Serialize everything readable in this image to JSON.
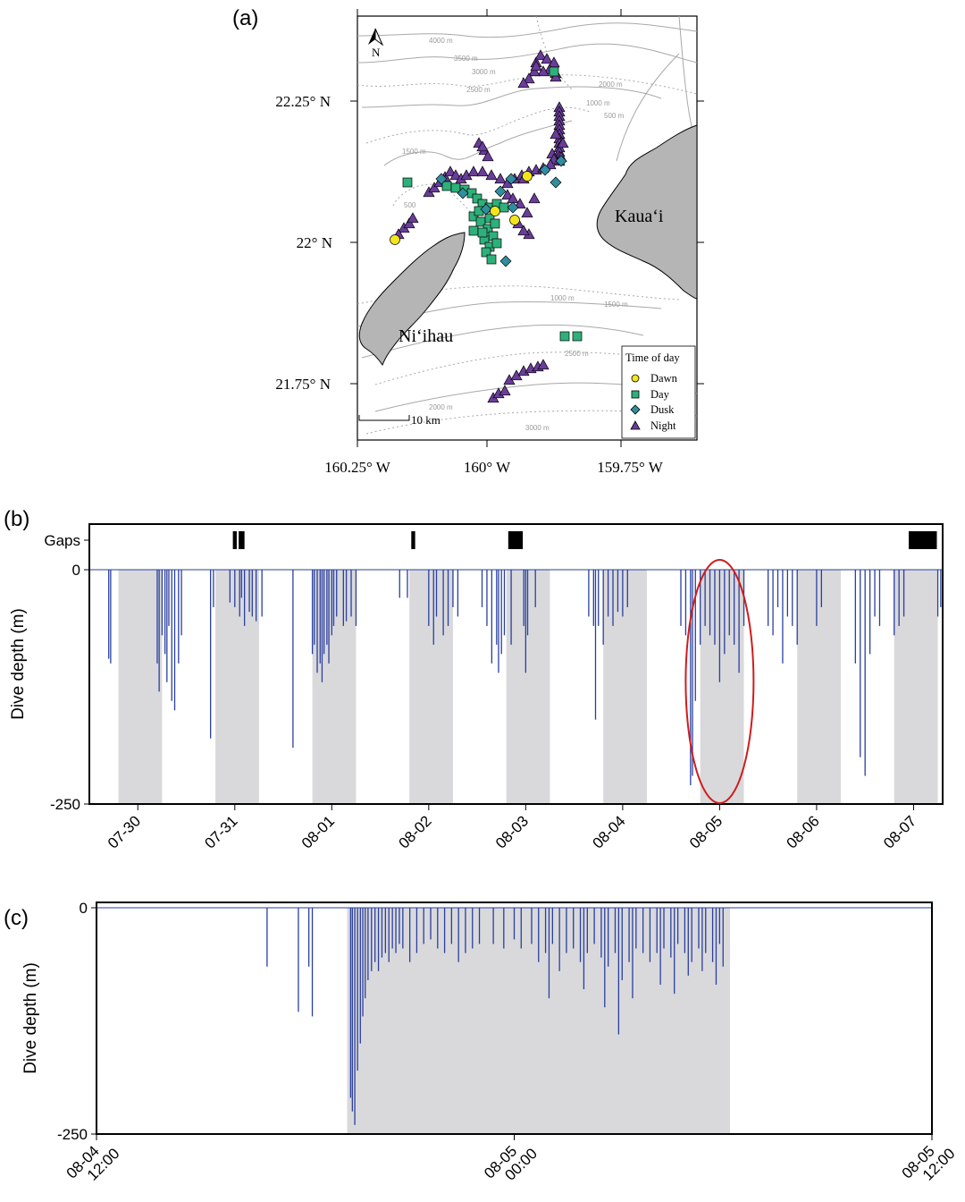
{
  "panels": {
    "a": "(a)",
    "b": "(b)",
    "c": "(c)"
  },
  "map": {
    "lat_ticks": [
      "22.25° N",
      "22° N",
      "21.75° N"
    ],
    "lon_ticks": [
      "160.25° W",
      "160° W",
      "159.75° W"
    ],
    "north": "N",
    "scale_bar": "10 km",
    "islands": [
      "Kauaʻi",
      "Niʻihau"
    ],
    "contours": [
      "4000 m",
      "3500 m",
      "3000 m",
      "2500 m",
      "2000 m",
      "1000 m",
      "500 m",
      "1500 m",
      "500",
      "1000 m",
      "1500 m",
      "2500 m",
      "2000 m",
      "3000 m"
    ],
    "legend": {
      "title": "Time of day",
      "items": [
        {
          "label": "Dawn",
          "color": "#f2e61a",
          "shape": "circle"
        },
        {
          "label": "Day",
          "color": "#2eb07a",
          "shape": "square"
        },
        {
          "label": "Dusk",
          "color": "#2f8fa0",
          "shape": "diamond"
        },
        {
          "label": "Night",
          "color": "#6a3d9a",
          "shape": "triangle"
        }
      ]
    },
    "colors": {
      "land": "#b5b5b5",
      "contour": "#a8a8a8"
    }
  },
  "chart_data": [
    {
      "type": "line",
      "panel": "b",
      "ylabel": "Dive depth (m)",
      "gaps_label": "Gaps",
      "ylim": [
        -250,
        0
      ],
      "yticks": [
        "0",
        "-250"
      ],
      "xticks": [
        "07-30",
        "07-31",
        "08-01",
        "08-02",
        "08-03",
        "08-04",
        "08-05",
        "08-06",
        "08-07"
      ],
      "x_unit": "days since 07-30 00:00",
      "xlim": [
        -0.5,
        8.3
      ],
      "night_shading": [
        [
          -0.2,
          0.25
        ],
        [
          0.8,
          1.25
        ],
        [
          1.8,
          2.25
        ],
        [
          2.8,
          3.25
        ],
        [
          3.8,
          4.25
        ],
        [
          4.8,
          5.25
        ],
        [
          5.8,
          6.25
        ],
        [
          6.8,
          7.25
        ],
        [
          7.8,
          8.25
        ]
      ],
      "gaps": [
        [
          0.98,
          1.02
        ],
        [
          1.04,
          1.1
        ],
        [
          2.82,
          2.86
        ],
        [
          3.82,
          3.97
        ],
        [
          7.95,
          8.24
        ]
      ],
      "dives": [
        [
          -0.3,
          -95
        ],
        [
          -0.28,
          -100
        ],
        [
          0.2,
          -100
        ],
        [
          0.22,
          -130
        ],
        [
          0.3,
          -120
        ],
        [
          0.35,
          -140
        ],
        [
          0.38,
          -150
        ],
        [
          0.42,
          -100
        ],
        [
          0.25,
          -70
        ],
        [
          0.28,
          -90
        ],
        [
          0.32,
          -60
        ],
        [
          0.45,
          -70
        ],
        [
          0.75,
          -180
        ],
        [
          0.78,
          -40
        ],
        [
          1.0,
          -40
        ],
        [
          1.05,
          -50
        ],
        [
          1.1,
          -60
        ],
        [
          1.15,
          -45
        ],
        [
          1.18,
          -50
        ],
        [
          1.22,
          -55
        ],
        [
          1.28,
          -50
        ],
        [
          0.95,
          -35
        ],
        [
          1.07,
          -30
        ],
        [
          1.6,
          -190
        ],
        [
          1.8,
          -90
        ],
        [
          1.82,
          -80
        ],
        [
          1.85,
          -110
        ],
        [
          1.88,
          -100
        ],
        [
          1.9,
          -120
        ],
        [
          1.92,
          -90
        ],
        [
          1.95,
          -80
        ],
        [
          1.97,
          -100
        ],
        [
          2.0,
          -70
        ],
        [
          2.02,
          -60
        ],
        [
          2.05,
          -50
        ],
        [
          2.12,
          -60
        ],
        [
          2.15,
          -55
        ],
        [
          2.2,
          -50
        ],
        [
          2.25,
          -60
        ],
        [
          2.7,
          -30
        ],
        [
          2.78,
          -30
        ],
        [
          3.0,
          -60
        ],
        [
          3.05,
          -80
        ],
        [
          3.08,
          -50
        ],
        [
          3.15,
          -70
        ],
        [
          3.2,
          -60
        ],
        [
          3.25,
          -40
        ],
        [
          3.3,
          -50
        ],
        [
          3.55,
          -40
        ],
        [
          3.6,
          -60
        ],
        [
          3.65,
          -100
        ],
        [
          3.7,
          -80
        ],
        [
          3.72,
          -110
        ],
        [
          3.75,
          -90
        ],
        [
          3.78,
          -70
        ],
        [
          3.85,
          -80
        ],
        [
          3.98,
          -60
        ],
        [
          4.0,
          -110
        ],
        [
          4.02,
          -70
        ],
        [
          4.1,
          -40
        ],
        [
          4.65,
          -50
        ],
        [
          4.7,
          -60
        ],
        [
          4.72,
          -160
        ],
        [
          4.75,
          -60
        ],
        [
          4.8,
          -80
        ],
        [
          4.85,
          -50
        ],
        [
          4.9,
          -60
        ],
        [
          4.95,
          -45
        ],
        [
          5.0,
          -50
        ],
        [
          5.05,
          -40
        ],
        [
          5.6,
          -60
        ],
        [
          5.65,
          -70
        ],
        [
          5.7,
          -230
        ],
        [
          5.72,
          -220
        ],
        [
          5.75,
          -140
        ],
        [
          5.8,
          -80
        ],
        [
          5.85,
          -60
        ],
        [
          5.9,
          -70
        ],
        [
          5.95,
          -80
        ],
        [
          6.0,
          -120
        ],
        [
          6.05,
          -90
        ],
        [
          6.1,
          -70
        ],
        [
          6.15,
          -80
        ],
        [
          6.2,
          -110
        ],
        [
          6.25,
          -60
        ],
        [
          6.5,
          -60
        ],
        [
          6.55,
          -70
        ],
        [
          6.6,
          -40
        ],
        [
          6.65,
          -100
        ],
        [
          6.7,
          -50
        ],
        [
          6.75,
          -60
        ],
        [
          6.8,
          -80
        ],
        [
          7.0,
          -60
        ],
        [
          7.05,
          -40
        ],
        [
          7.4,
          -100
        ],
        [
          7.45,
          -200
        ],
        [
          7.5,
          -220
        ],
        [
          7.55,
          -90
        ],
        [
          7.6,
          -50
        ],
        [
          7.65,
          -60
        ],
        [
          7.8,
          -70
        ],
        [
          7.85,
          -60
        ],
        [
          7.9,
          -50
        ],
        [
          8.25,
          -50
        ],
        [
          8.28,
          -40
        ]
      ],
      "annotation": "red ellipse around 08-05"
    },
    {
      "type": "line",
      "panel": "c",
      "ylabel": "Dive depth (m)",
      "ylim": [
        -250,
        0
      ],
      "yticks": [
        "0",
        "-250"
      ],
      "xticks": [
        "08-04\n12:00",
        "08-05\n00:00",
        "08-05\n12:00"
      ],
      "x_unit": "hours since 08-04 12:00",
      "xlim": [
        0,
        24
      ],
      "night_shading": [
        [
          7.2,
          18.2
        ]
      ],
      "dives": [
        [
          4.9,
          -65
        ],
        [
          5.8,
          -115
        ],
        [
          6.1,
          -65
        ],
        [
          6.2,
          -120
        ],
        [
          7.3,
          -210
        ],
        [
          7.35,
          -225
        ],
        [
          7.42,
          -240
        ],
        [
          7.5,
          -180
        ],
        [
          7.58,
          -150
        ],
        [
          7.65,
          -120
        ],
        [
          7.72,
          -100
        ],
        [
          7.8,
          -80
        ],
        [
          7.9,
          -70
        ],
        [
          8.0,
          -60
        ],
        [
          8.1,
          -70
        ],
        [
          8.2,
          -55
        ],
        [
          8.3,
          -50
        ],
        [
          8.4,
          -60
        ],
        [
          8.5,
          -45
        ],
        [
          8.6,
          -50
        ],
        [
          8.7,
          -40
        ],
        [
          8.8,
          -45
        ],
        [
          9.0,
          -60
        ],
        [
          9.2,
          -50
        ],
        [
          9.4,
          -40
        ],
        [
          9.6,
          -35
        ],
        [
          9.8,
          -45
        ],
        [
          10.0,
          -50
        ],
        [
          10.2,
          -40
        ],
        [
          10.4,
          -60
        ],
        [
          10.6,
          -50
        ],
        [
          10.8,
          -45
        ],
        [
          11.0,
          -40
        ],
        [
          12.5,
          -40
        ],
        [
          12.7,
          -60
        ],
        [
          12.9,
          -50
        ],
        [
          13.1,
          -40
        ],
        [
          13.3,
          -70
        ],
        [
          13.5,
          -50
        ],
        [
          13.7,
          -45
        ],
        [
          13.9,
          -60
        ],
        [
          14.1,
          -50
        ],
        [
          14.3,
          -40
        ],
        [
          14.5,
          -55
        ],
        [
          14.7,
          -65
        ],
        [
          14.9,
          -50
        ],
        [
          15.1,
          -80
        ],
        [
          15.3,
          -60
        ],
        [
          15.5,
          -45
        ],
        [
          15.7,
          -50
        ],
        [
          15.9,
          -60
        ],
        [
          16.1,
          -50
        ],
        [
          16.3,
          -45
        ],
        [
          16.5,
          -55
        ],
        [
          16.7,
          -40
        ],
        [
          16.9,
          -50
        ],
        [
          17.1,
          -60
        ],
        [
          17.3,
          -45
        ],
        [
          17.5,
          -50
        ],
        [
          17.7,
          -60
        ],
        [
          17.9,
          -40
        ],
        [
          11.4,
          -40
        ],
        [
          11.7,
          -45
        ],
        [
          12.0,
          -35
        ],
        [
          12.2,
          -45
        ],
        [
          13.0,
          -100
        ],
        [
          14.0,
          -90
        ],
        [
          14.6,
          -110
        ],
        [
          15.0,
          -140
        ],
        [
          15.4,
          -100
        ],
        [
          16.2,
          -85
        ],
        [
          16.6,
          -95
        ],
        [
          17.0,
          -75
        ],
        [
          17.4,
          -70
        ],
        [
          17.8,
          -85
        ],
        [
          18.0,
          -65
        ]
      ]
    }
  ]
}
